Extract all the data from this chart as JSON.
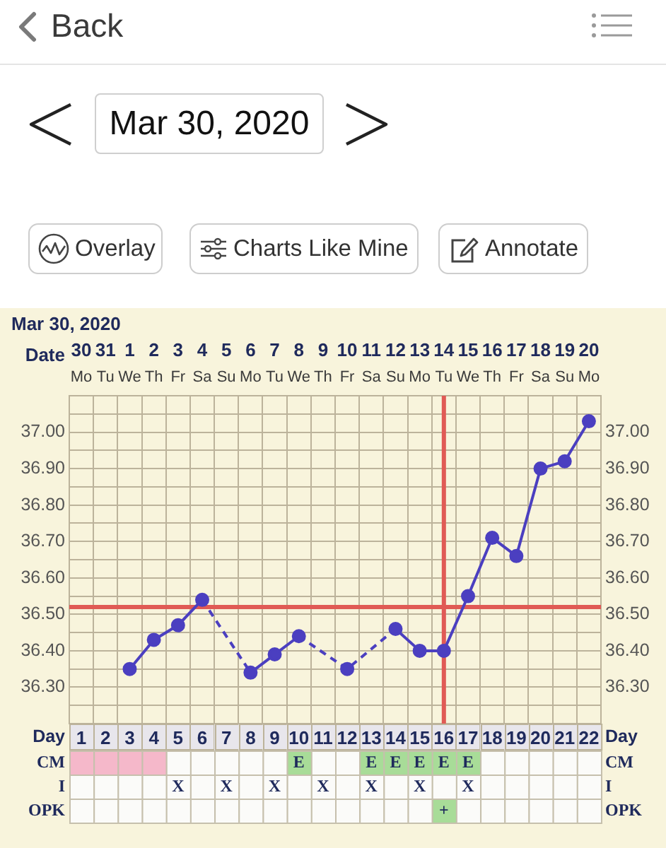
{
  "chart_data": [
    {
      "type": "other",
      "annotations": [
        "Back",
        "Mar 30, 2020",
        "Overlay",
        "Charts Like Mine",
        "Annotate"
      ]
    },
    {
      "type": "line",
      "title": "Mar 30, 2020",
      "x": [
        "2020-04-01",
        "2020-04-02",
        "2020-04-03",
        "2020-04-04",
        "2020-04-05",
        "2020-04-06",
        "2020-04-07",
        "2020-04-08",
        "2020-04-09",
        "2020-04-10",
        "2020-04-11",
        "2020-04-12",
        "2020-04-13",
        "2020-04-14",
        "2020-04-15",
        "2020-04-16",
        "2020-04-17",
        "2020-04-18",
        "2020-04-19",
        "2020-04-20"
      ],
      "xlabel": "Date",
      "xlim": [
        "2020-03-29T12:00",
        "2020-04-20T12:00"
      ],
      "xticks": [
        {
          "value": "2020-03-30",
          "label": "30"
        },
        {
          "value": "2020-03-31",
          "label": "31"
        },
        {
          "value": "2020-04-01",
          "label": "1"
        },
        {
          "value": "2020-04-02",
          "label": "2"
        },
        {
          "value": "2020-04-03",
          "label": "3"
        },
        {
          "value": "2020-04-04",
          "label": "4"
        },
        {
          "value": "2020-04-05",
          "label": "5"
        },
        {
          "value": "2020-04-06",
          "label": "6"
        },
        {
          "value": "2020-04-07",
          "label": "7"
        },
        {
          "value": "2020-04-08",
          "label": "8"
        },
        {
          "value": "2020-04-09",
          "label": "9"
        },
        {
          "value": "2020-04-10",
          "label": "10"
        },
        {
          "value": "2020-04-11",
          "label": "11"
        },
        {
          "value": "2020-04-12",
          "label": "12"
        },
        {
          "value": "2020-04-13",
          "label": "13"
        },
        {
          "value": "2020-04-14",
          "label": "14"
        },
        {
          "value": "2020-04-15",
          "label": "15"
        },
        {
          "value": "2020-04-16",
          "label": "16"
        },
        {
          "value": "2020-04-17",
          "label": "17"
        },
        {
          "value": "2020-04-18",
          "label": "18"
        },
        {
          "value": "2020-04-19",
          "label": "19"
        },
        {
          "value": "2020-04-20",
          "label": "20"
        }
      ],
      "x2label": "Day",
      "x2lim": [
        0.5,
        22.5
      ],
      "x2ticks": [
        1,
        2,
        3,
        4,
        5,
        6,
        7,
        8,
        9,
        10,
        11,
        12,
        13,
        14,
        15,
        16,
        17,
        18,
        19,
        20,
        21,
        22
      ],
      "ylim": [
        36.2,
        37.1
      ],
      "yticks": [
        {
          "value": 36.25,
          "label": null
        },
        {
          "value": 36.3,
          "label": "36.30"
        },
        {
          "value": 36.35,
          "label": null
        },
        {
          "value": 36.4,
          "label": "36.40"
        },
        {
          "value": 36.45,
          "label": null
        },
        {
          "value": 36.5,
          "label": "36.50"
        },
        {
          "value": 36.55,
          "label": null
        },
        {
          "value": 36.6,
          "label": "36.60"
        },
        {
          "value": 36.65,
          "label": null
        },
        {
          "value": 36.7,
          "label": "36.70"
        },
        {
          "value": 36.75,
          "label": null
        },
        {
          "value": 36.8,
          "label": "36.80"
        },
        {
          "value": 36.85,
          "label": null
        },
        {
          "value": 36.9,
          "label": "36.90"
        },
        {
          "value": 36.95,
          "label": null
        },
        {
          "value": 37,
          "label": "37.00"
        },
        {
          "value": 37.05,
          "label": null
        }
      ],
      "y2lim": [
        36.2,
        37.1
      ],
      "y2ticks": [
        {
          "value": 36.3,
          "label": "36.30"
        },
        {
          "value": 36.4,
          "label": "36.40"
        },
        {
          "value": 36.5,
          "label": "36.50"
        },
        {
          "value": 36.6,
          "label": "36.60"
        },
        {
          "value": 36.7,
          "label": "36.70"
        },
        {
          "value": 36.8,
          "label": "36.80"
        },
        {
          "value": 36.9,
          "label": "36.90"
        },
        {
          "value": 37,
          "label": "37.00"
        }
      ],
      "series": [
        {
          "color": "#4b3fc0",
          "values": [
            36.35,
            36.43,
            36.47,
            36.54,
            null,
            36.34,
            36.39,
            36.44,
            null,
            36.35,
            null,
            36.46,
            36.4,
            36.4,
            36.55,
            36.71,
            36.66,
            36.9,
            36.92,
            37.03
          ]
        }
      ],
      "ref_lines": [
        {
          "axis": "y",
          "value": 36.52,
          "color": "#e05a55"
        },
        {
          "axis": "x",
          "value": "2020-04-14",
          "color": "#e05a55"
        }
      ],
      "grid": true,
      "legend": false,
      "marker": "circle",
      "line_style": "solid"
    },
    {
      "type": "other",
      "cell_labels": [
        [
          "Mo",
          "Tu",
          "We",
          "Th",
          "Fr",
          "Sa",
          "Su",
          "Mo",
          "Tu",
          "We",
          "Th",
          "Fr",
          "Sa",
          "Su",
          "Mo",
          "Tu",
          "We",
          "Th",
          "Fr",
          "Sa",
          "Su",
          "Mo"
        ]
      ]
    },
    {
      "type": "other",
      "y_categories": [
        "CM",
        "I",
        "OPK"
      ],
      "y2_categories": [
        "CM",
        "I",
        "OPK"
      ],
      "cell_labels": [
        [
          null,
          null,
          null,
          null,
          null,
          null,
          null,
          null,
          null,
          "E",
          null,
          null,
          "E",
          "E",
          "E",
          "E",
          "E",
          null,
          null,
          null,
          null,
          null
        ],
        [
          null,
          null,
          null,
          null,
          "X",
          null,
          "X",
          null,
          "X",
          null,
          "X",
          null,
          "X",
          null,
          "X",
          null,
          "X",
          null,
          null,
          null,
          null,
          null
        ],
        [
          null,
          null,
          null,
          null,
          null,
          null,
          null,
          null,
          null,
          null,
          null,
          null,
          null,
          null,
          null,
          "+",
          null,
          null,
          null,
          null,
          null,
          null
        ]
      ],
      "colors": [
        [
          "#f5b8ca",
          "#f5b8ca",
          "#f5b8ca",
          "#f5b8ca",
          null,
          null,
          null,
          null,
          null,
          "#a8dc98",
          null,
          null,
          "#a8dc98",
          "#a8dc98",
          "#a8dc98",
          "#a8dc98",
          "#a8dc98",
          null,
          null,
          null,
          null,
          null
        ],
        [
          null,
          null,
          null,
          null,
          null,
          null,
          null,
          null,
          null,
          null,
          null,
          null,
          null,
          null,
          null,
          null,
          null,
          null,
          null,
          null,
          null,
          null
        ],
        [
          null,
          null,
          null,
          null,
          null,
          null,
          null,
          null,
          null,
          null,
          null,
          null,
          null,
          null,
          null,
          "#a8dc98",
          null,
          null,
          null,
          null,
          null,
          null
        ]
      ]
    }
  ]
}
